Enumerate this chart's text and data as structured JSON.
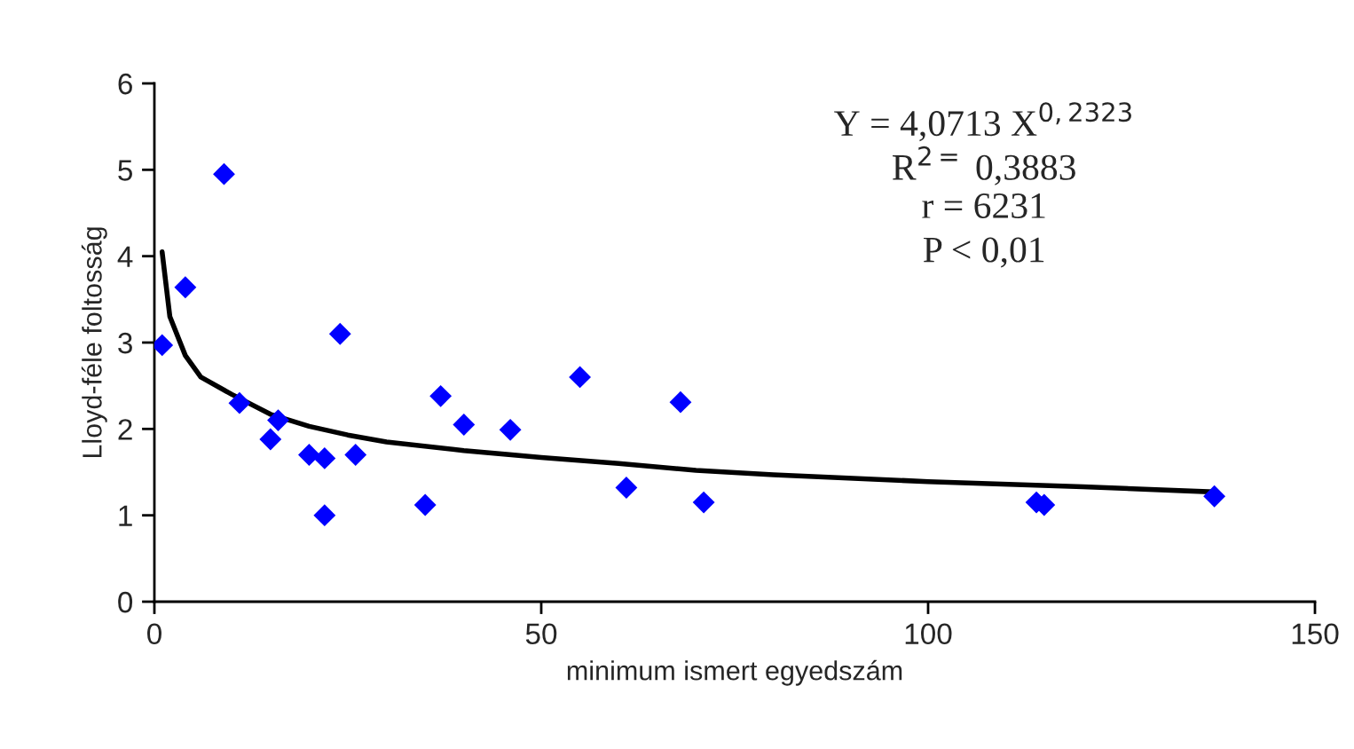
{
  "chart_data": {
    "type": "scatter",
    "xlabel": "minimum ismert egyedszám",
    "ylabel": "Lloyd-féle foltosság",
    "xlim": [
      0,
      150
    ],
    "xticks": [
      0,
      50,
      100,
      150
    ],
    "ylim": [
      0,
      6
    ],
    "yticks": [
      0,
      1,
      2,
      3,
      4,
      5,
      6
    ],
    "grid": false,
    "marker": "diamond",
    "series": [
      {
        "color": "#0000ff",
        "x": [
          1,
          4,
          9,
          11,
          15,
          16,
          20,
          22,
          22,
          24,
          26,
          35,
          37,
          40,
          46,
          55,
          61,
          68,
          71,
          114,
          115,
          137
        ],
        "values": [
          2.97,
          3.64,
          4.95,
          2.3,
          1.88,
          2.1,
          1.7,
          1.66,
          1.0,
          3.1,
          1.7,
          1.12,
          2.38,
          2.05,
          1.99,
          2.6,
          1.32,
          2.31,
          1.15,
          1.15,
          1.12,
          1.22
        ]
      },
      {
        "type": "line",
        "color": "#000000",
        "marker": "none",
        "line_style": "solid",
        "x": [
          1,
          2,
          4,
          6,
          10,
          15,
          20,
          25,
          30,
          40,
          50,
          60,
          70,
          80,
          100,
          120,
          137
        ],
        "values": [
          4.05,
          3.3,
          2.85,
          2.6,
          2.4,
          2.17,
          2.03,
          1.93,
          1.85,
          1.75,
          1.67,
          1.6,
          1.52,
          1.47,
          1.39,
          1.33,
          1.27
        ]
      }
    ],
    "annotations": [
      "Y = 4,0713 X$^{0,2323}$",
      "R$^{2=}$ 0,3883",
      "r = 6231",
      "P < 0,01"
    ]
  }
}
